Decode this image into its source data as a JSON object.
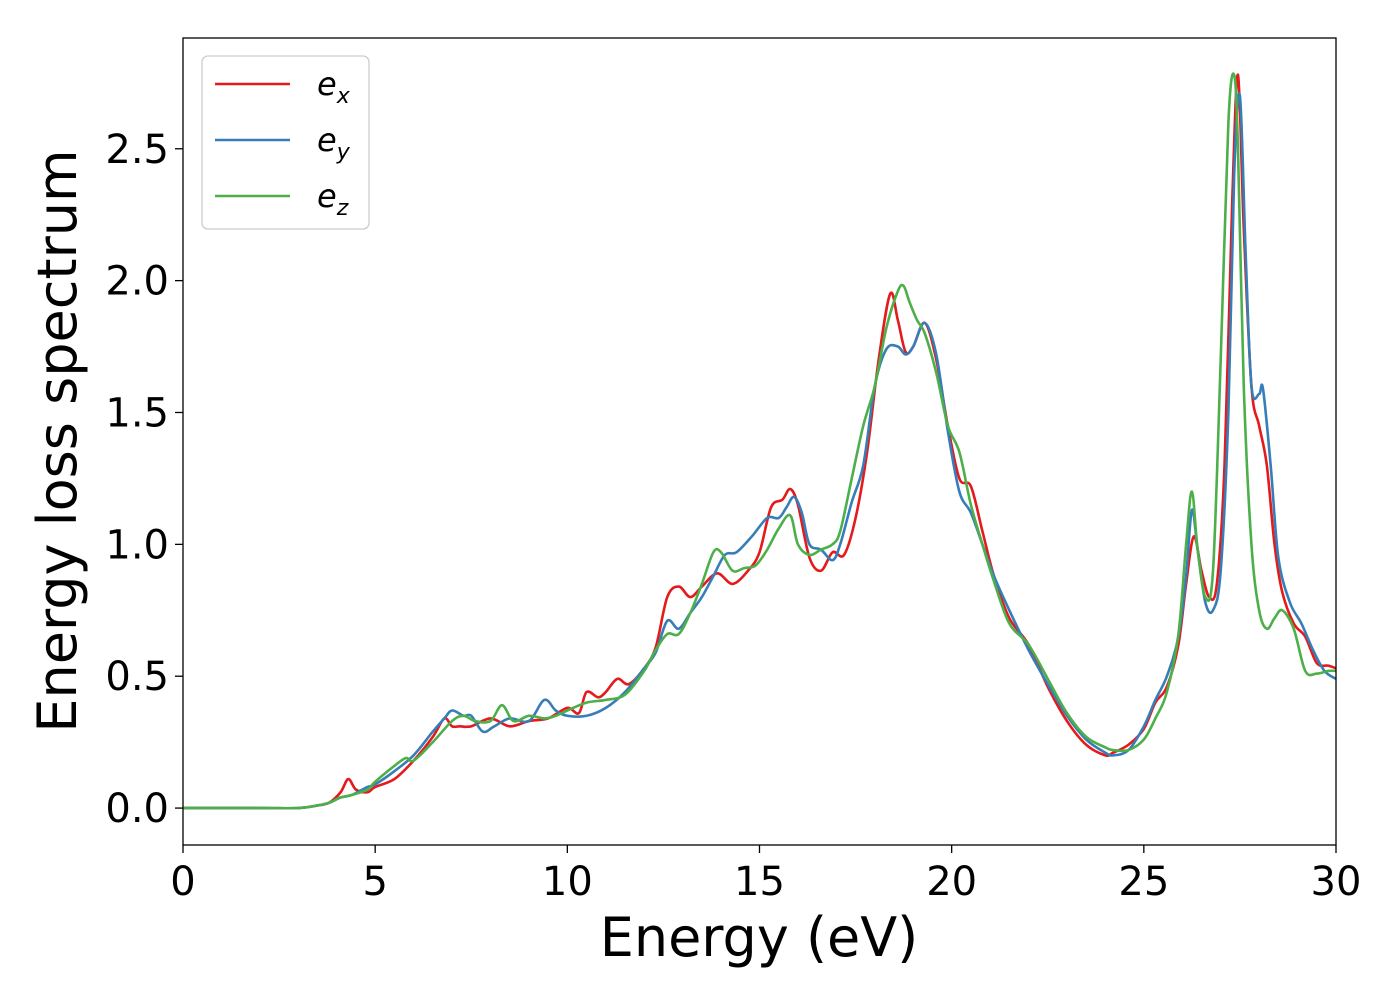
{
  "chart_data": {
    "type": "line",
    "xlabel": "Energy (eV)",
    "ylabel": "Energy loss spectrum",
    "xlim": [
      0,
      30
    ],
    "ylim": [
      -0.14,
      2.92
    ],
    "xticks": [
      0,
      5,
      10,
      15,
      20,
      25,
      30
    ],
    "xtick_labels": [
      "0",
      "5",
      "10",
      "15",
      "20",
      "25",
      "30"
    ],
    "yticks": [
      0.0,
      0.5,
      1.0,
      1.5,
      2.0,
      2.5
    ],
    "ytick_labels": [
      "0.0",
      "0.5",
      "1.0",
      "1.5",
      "2.0",
      "2.5"
    ],
    "grid": false,
    "legend_position": "top-left",
    "series": [
      {
        "name": "e_x",
        "label_base": "e",
        "label_sub": "x",
        "color": "#e41a1c",
        "x": [
          0,
          2,
          3,
          3.5,
          3.8,
          4.1,
          4.3,
          4.5,
          4.8,
          5.0,
          5.5,
          6.0,
          6.5,
          6.8,
          7.0,
          7.2,
          7.5,
          8.0,
          8.5,
          9.0,
          9.5,
          10.0,
          10.3,
          10.5,
          10.8,
          11.0,
          11.3,
          11.6,
          12.0,
          12.3,
          12.6,
          12.9,
          13.2,
          13.5,
          13.9,
          14.3,
          14.7,
          15.0,
          15.3,
          15.6,
          15.8,
          16.0,
          16.3,
          16.6,
          16.9,
          17.2,
          17.5,
          17.8,
          18.1,
          18.4,
          18.6,
          18.8,
          19.0,
          19.3,
          19.6,
          19.9,
          20.2,
          20.5,
          20.8,
          21.1,
          21.5,
          22.0,
          22.5,
          23.0,
          23.5,
          24.0,
          24.2,
          24.6,
          25.0,
          25.3,
          25.6,
          25.9,
          26.1,
          26.3,
          26.5,
          26.7,
          26.9,
          27.1,
          27.3,
          27.45,
          27.6,
          27.8,
          28.0,
          28.2,
          28.4,
          28.6,
          28.9,
          29.2,
          29.5,
          29.8,
          30.0
        ],
        "y": [
          0.0,
          0.0,
          0.0,
          0.01,
          0.02,
          0.06,
          0.11,
          0.07,
          0.06,
          0.08,
          0.11,
          0.18,
          0.27,
          0.34,
          0.31,
          0.31,
          0.31,
          0.34,
          0.31,
          0.33,
          0.34,
          0.38,
          0.36,
          0.44,
          0.42,
          0.44,
          0.49,
          0.47,
          0.53,
          0.61,
          0.8,
          0.84,
          0.8,
          0.84,
          0.89,
          0.85,
          0.9,
          0.97,
          1.14,
          1.17,
          1.21,
          1.15,
          0.95,
          0.9,
          0.97,
          0.96,
          1.1,
          1.35,
          1.7,
          1.95,
          1.85,
          1.73,
          1.75,
          1.84,
          1.7,
          1.45,
          1.25,
          1.22,
          1.05,
          0.88,
          0.72,
          0.62,
          0.46,
          0.33,
          0.24,
          0.2,
          0.21,
          0.24,
          0.3,
          0.4,
          0.46,
          0.62,
          0.85,
          1.03,
          0.9,
          0.8,
          0.85,
          1.3,
          2.3,
          2.78,
          2.2,
          1.6,
          1.45,
          1.3,
          1.0,
          0.82,
          0.7,
          0.65,
          0.55,
          0.54,
          0.53
        ]
      },
      {
        "name": "e_y",
        "label_base": "e",
        "label_sub": "y",
        "color": "#377eb8",
        "x": [
          0,
          2,
          3,
          3.5,
          3.8,
          4.1,
          4.4,
          4.8,
          5.0,
          5.5,
          6.0,
          6.5,
          6.8,
          7.0,
          7.3,
          7.5,
          7.8,
          8.1,
          8.5,
          9.0,
          9.4,
          9.7,
          10.0,
          10.5,
          11.0,
          11.5,
          12.0,
          12.3,
          12.6,
          12.9,
          13.2,
          13.5,
          13.8,
          14.1,
          14.4,
          14.8,
          15.2,
          15.5,
          15.7,
          15.9,
          16.1,
          16.3,
          16.6,
          16.9,
          17.1,
          17.4,
          17.7,
          18.0,
          18.3,
          18.6,
          18.8,
          19.0,
          19.3,
          19.6,
          19.9,
          20.2,
          20.5,
          20.8,
          21.1,
          21.5,
          22.0,
          22.5,
          23.0,
          23.5,
          24.0,
          24.2,
          24.6,
          25.0,
          25.3,
          25.6,
          25.9,
          26.1,
          26.25,
          26.4,
          26.6,
          26.8,
          27.0,
          27.2,
          27.35,
          27.5,
          27.65,
          27.8,
          28.0,
          28.1,
          28.3,
          28.5,
          28.8,
          29.1,
          29.4,
          29.7,
          30.0
        ],
        "y": [
          0.0,
          0.0,
          0.0,
          0.01,
          0.02,
          0.04,
          0.05,
          0.08,
          0.09,
          0.14,
          0.2,
          0.29,
          0.34,
          0.37,
          0.35,
          0.35,
          0.29,
          0.31,
          0.34,
          0.33,
          0.41,
          0.37,
          0.35,
          0.35,
          0.38,
          0.44,
          0.53,
          0.59,
          0.71,
          0.68,
          0.74,
          0.8,
          0.88,
          0.96,
          0.97,
          1.03,
          1.1,
          1.1,
          1.14,
          1.18,
          1.12,
          1.0,
          0.98,
          0.94,
          1.0,
          1.16,
          1.3,
          1.6,
          1.74,
          1.75,
          1.72,
          1.75,
          1.84,
          1.72,
          1.43,
          1.2,
          1.12,
          1.0,
          0.88,
          0.75,
          0.6,
          0.47,
          0.35,
          0.26,
          0.21,
          0.2,
          0.22,
          0.31,
          0.41,
          0.5,
          0.65,
          0.88,
          1.13,
          0.98,
          0.78,
          0.75,
          0.9,
          1.5,
          2.4,
          2.7,
          2.1,
          1.6,
          1.57,
          1.59,
          1.3,
          0.95,
          0.78,
          0.7,
          0.6,
          0.52,
          0.49
        ]
      },
      {
        "name": "e_z",
        "label_base": "e",
        "label_sub": "z",
        "color": "#4daf4a",
        "x": [
          0,
          2,
          3,
          3.5,
          3.8,
          4.1,
          4.4,
          4.8,
          5.0,
          5.5,
          5.8,
          6.0,
          6.5,
          7.0,
          7.3,
          7.6,
          8.0,
          8.3,
          8.6,
          9.0,
          9.4,
          9.7,
          10.0,
          10.5,
          11.0,
          11.5,
          12.0,
          12.3,
          12.6,
          12.9,
          13.2,
          13.5,
          13.8,
          14.0,
          14.3,
          14.6,
          14.9,
          15.2,
          15.5,
          15.8,
          16.0,
          16.3,
          16.6,
          16.9,
          17.1,
          17.4,
          17.7,
          18.0,
          18.3,
          18.6,
          18.75,
          18.9,
          19.1,
          19.3,
          19.6,
          19.9,
          20.2,
          20.5,
          20.8,
          21.1,
          21.5,
          22.0,
          22.5,
          23.0,
          23.5,
          24.0,
          24.2,
          24.6,
          25.0,
          25.3,
          25.6,
          25.9,
          26.1,
          26.25,
          26.4,
          26.6,
          26.8,
          27.0,
          27.2,
          27.35,
          27.45,
          27.6,
          27.8,
          28.0,
          28.2,
          28.4,
          28.6,
          28.9,
          29.2,
          29.5,
          29.8,
          30.0
        ],
        "y": [
          0.0,
          0.0,
          0.0,
          0.01,
          0.02,
          0.04,
          0.05,
          0.07,
          0.1,
          0.16,
          0.19,
          0.18,
          0.25,
          0.33,
          0.35,
          0.33,
          0.33,
          0.39,
          0.33,
          0.35,
          0.34,
          0.35,
          0.37,
          0.4,
          0.41,
          0.43,
          0.52,
          0.6,
          0.66,
          0.66,
          0.74,
          0.85,
          0.97,
          0.97,
          0.9,
          0.91,
          0.92,
          0.98,
          1.06,
          1.11,
          1.0,
          0.96,
          0.98,
          1.0,
          1.05,
          1.25,
          1.45,
          1.6,
          1.82,
          1.96,
          1.98,
          1.92,
          1.85,
          1.8,
          1.65,
          1.45,
          1.35,
          1.15,
          1.0,
          0.86,
          0.7,
          0.62,
          0.49,
          0.36,
          0.27,
          0.23,
          0.22,
          0.22,
          0.26,
          0.34,
          0.44,
          0.66,
          1.0,
          1.2,
          0.98,
          0.8,
          0.9,
          1.7,
          2.6,
          2.78,
          2.5,
          1.6,
          1.0,
          0.75,
          0.68,
          0.72,
          0.75,
          0.68,
          0.52,
          0.51,
          0.52,
          0.52
        ]
      }
    ]
  }
}
